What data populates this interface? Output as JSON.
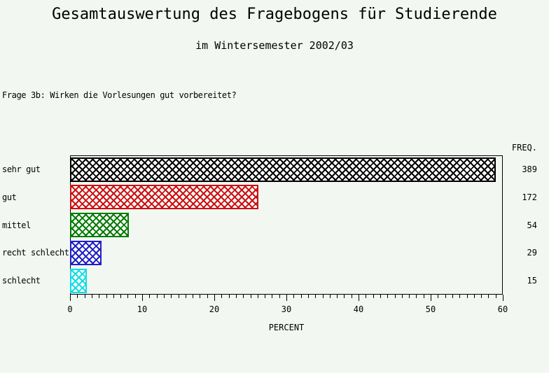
{
  "header": {
    "title": "Gesamtauswertung des Fragebogens für Studierende",
    "subtitle": "im Wintersemester 2002/03"
  },
  "question": "Frage 3b: Wirken die Vorlesungen gut vorbereitet?",
  "freq_column": {
    "header": "FREQ.",
    "values": [
      389,
      172,
      54,
      29,
      15
    ]
  },
  "colors": {
    "background": "#f2f7f2",
    "frame": "#000000",
    "text": "#000000"
  },
  "chart_data": {
    "type": "bar",
    "orientation": "horizontal",
    "title": "Gesamtauswertung des Fragebogens für Studierende",
    "subtitle": "im Wintersemester 2002/03",
    "annotation": "Frage 3b: Wirken die Vorlesungen gut vorbereitet?",
    "categories": [
      "sehr gut",
      "gut",
      "mittel",
      "recht schlecht",
      "schlecht"
    ],
    "series": [
      {
        "name": "PERCENT",
        "values": [
          59.0,
          26.1,
          8.2,
          4.4,
          2.3
        ]
      },
      {
        "name": "FREQ.",
        "values": [
          389,
          172,
          54,
          29,
          15
        ]
      }
    ],
    "bar_colors": [
      "#000000",
      "#cc1111",
      "#007a00",
      "#2020c8",
      "#10dde4"
    ],
    "bar_pattern": "diagonal-crosshatch",
    "xlabel": "PERCENT",
    "xlim": [
      0,
      60
    ],
    "xticks": [
      0,
      10,
      20,
      30,
      40,
      50,
      60
    ],
    "minor_tick_step": 1,
    "grid": false,
    "legend": false
  }
}
